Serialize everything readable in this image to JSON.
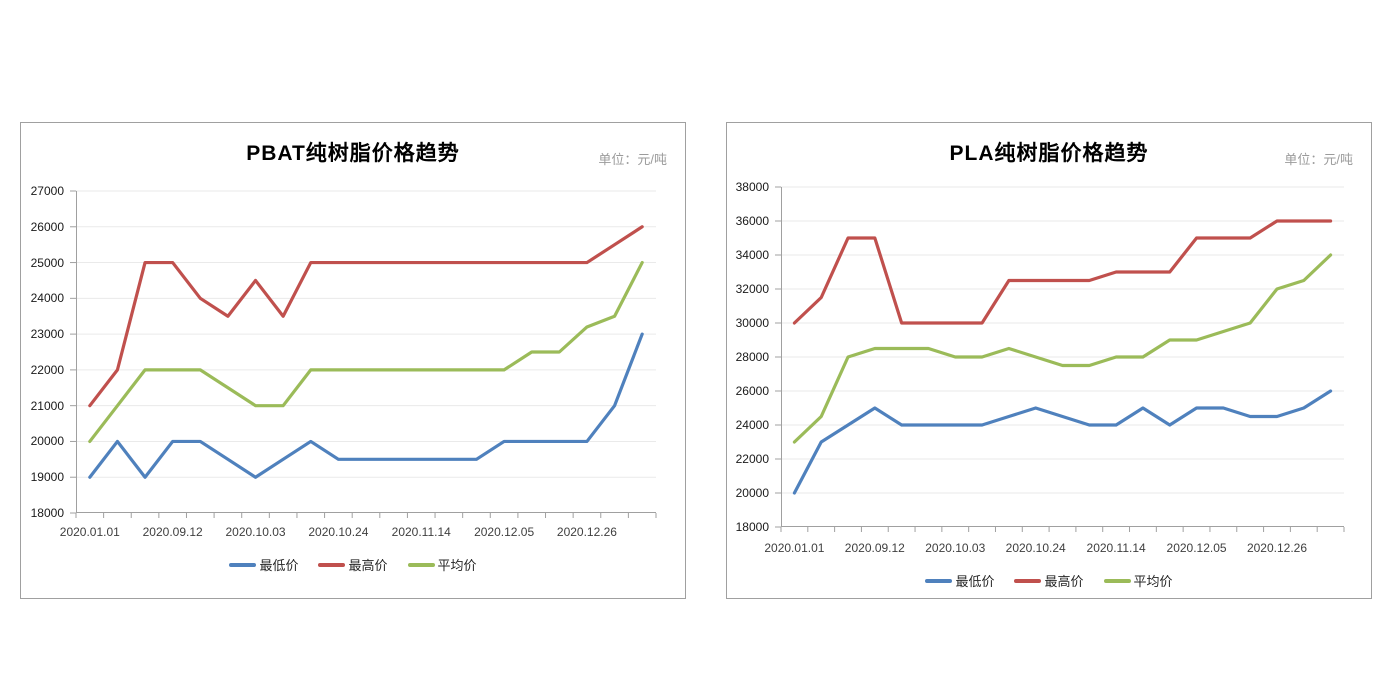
{
  "colors": {
    "min_price": "#4F81BD",
    "max_price": "#C0504D",
    "avg_price": "#9BBB59",
    "axis": "#a0a0a0",
    "grid": "#eaeaea",
    "card_border": "#a0a0a0",
    "title_text": "#000000",
    "unit_text": "#9b9b9b"
  },
  "chart_data": [
    {
      "type": "line",
      "title": "PBAT纯树脂价格趋势",
      "unit_label": "单位：元/吨",
      "num_points": 21,
      "x_tick_labels": [
        "2020.01.01",
        "2020.09.12",
        "2020.10.03",
        "2020.10.24",
        "2020.11.14",
        "2020.12.05",
        "2020.12.26"
      ],
      "x_tick_point_indices": [
        0,
        3,
        6,
        9,
        12,
        15,
        18
      ],
      "ylim": [
        18000,
        27000
      ],
      "y_step": 1000,
      "grid": true,
      "legend_position": "bottom",
      "series": [
        {
          "name": "最低价",
          "color": "#4F81BD",
          "values": [
            19000,
            20000,
            19000,
            20000,
            20000,
            19500,
            19000,
            19500,
            20000,
            19500,
            19500,
            19500,
            19500,
            19500,
            19500,
            20000,
            20000,
            20000,
            20000,
            21000,
            23000
          ]
        },
        {
          "name": "最高价",
          "color": "#C0504D",
          "values": [
            21000,
            22000,
            25000,
            25000,
            24000,
            23500,
            24500,
            23500,
            25000,
            25000,
            25000,
            25000,
            25000,
            25000,
            25000,
            25000,
            25000,
            25000,
            25000,
            25500,
            26000
          ]
        },
        {
          "name": "平均价",
          "color": "#9BBB59",
          "values": [
            20000,
            21000,
            22000,
            22000,
            22000,
            21500,
            21000,
            21000,
            22000,
            22000,
            22000,
            22000,
            22000,
            22000,
            22000,
            22000,
            22500,
            22500,
            23200,
            23500,
            25000
          ]
        }
      ]
    },
    {
      "type": "line",
      "title": "PLA纯树脂价格趋势",
      "unit_label": "单位：元/吨",
      "num_points": 21,
      "x_tick_labels": [
        "2020.01.01",
        "2020.09.12",
        "2020.10.03",
        "2020.10.24",
        "2020.11.14",
        "2020.12.05",
        "2020.12.26"
      ],
      "x_tick_point_indices": [
        0,
        3,
        6,
        9,
        12,
        15,
        18
      ],
      "ylim": [
        18000,
        38000
      ],
      "y_step": 2000,
      "grid": true,
      "legend_position": "bottom",
      "series": [
        {
          "name": "最低价",
          "color": "#4F81BD",
          "values": [
            20000,
            23000,
            24000,
            25000,
            24000,
            24000,
            24000,
            24000,
            24500,
            25000,
            24500,
            24000,
            24000,
            25000,
            24000,
            25000,
            25000,
            24500,
            24500,
            25000,
            26000
          ]
        },
        {
          "name": "最高价",
          "color": "#C0504D",
          "values": [
            30000,
            31500,
            35000,
            35000,
            30000,
            30000,
            30000,
            30000,
            32500,
            32500,
            32500,
            32500,
            33000,
            33000,
            33000,
            35000,
            35000,
            35000,
            36000,
            36000,
            36000
          ]
        },
        {
          "name": "平均价",
          "color": "#9BBB59",
          "values": [
            23000,
            24500,
            28000,
            28500,
            28500,
            28500,
            28000,
            28000,
            28500,
            28000,
            27500,
            27500,
            28000,
            28000,
            29000,
            29000,
            29500,
            30000,
            32000,
            32500,
            34000
          ]
        }
      ]
    }
  ]
}
